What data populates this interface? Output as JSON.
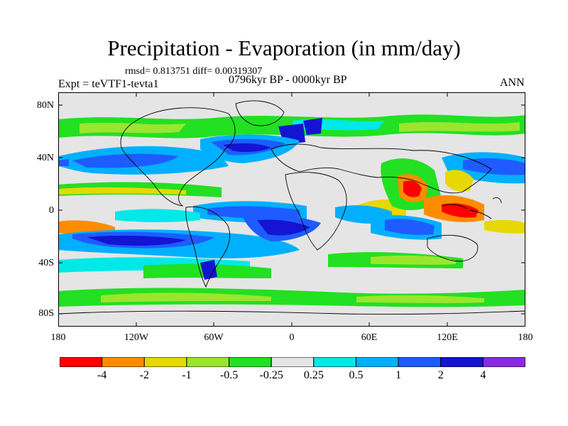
{
  "header": {
    "title": "Precipitation - Evaporation (in mm/day)",
    "stats": "rmsd= 0.813751 diff= 0.00319307",
    "experiment": "Expt = teVTF1-tevta1",
    "period": "0796kyr BP - 0000kyr BP",
    "season": "ANN"
  },
  "axes": {
    "lat_ticks": [
      "80N",
      "40N",
      "0",
      "40S",
      "80S"
    ],
    "lon_ticks": [
      "180",
      "120W",
      "60W",
      "0",
      "60E",
      "120E",
      "180"
    ]
  },
  "colorbar": {
    "colors": [
      "#ff0000",
      "#ff8c00",
      "#e6d800",
      "#9be52e",
      "#22e022",
      "#e5e5e5",
      "#00e8e8",
      "#00b0ff",
      "#1e5cff",
      "#1414d2",
      "#8a2be2"
    ],
    "labels": [
      "-4",
      "-2",
      "-1",
      "-0.5",
      "-0.25",
      "0.25",
      "0.5",
      "1",
      "2",
      "4"
    ]
  },
  "map_colors": {
    "background": "#e5e5e5",
    "land_outline": "#000000"
  }
}
